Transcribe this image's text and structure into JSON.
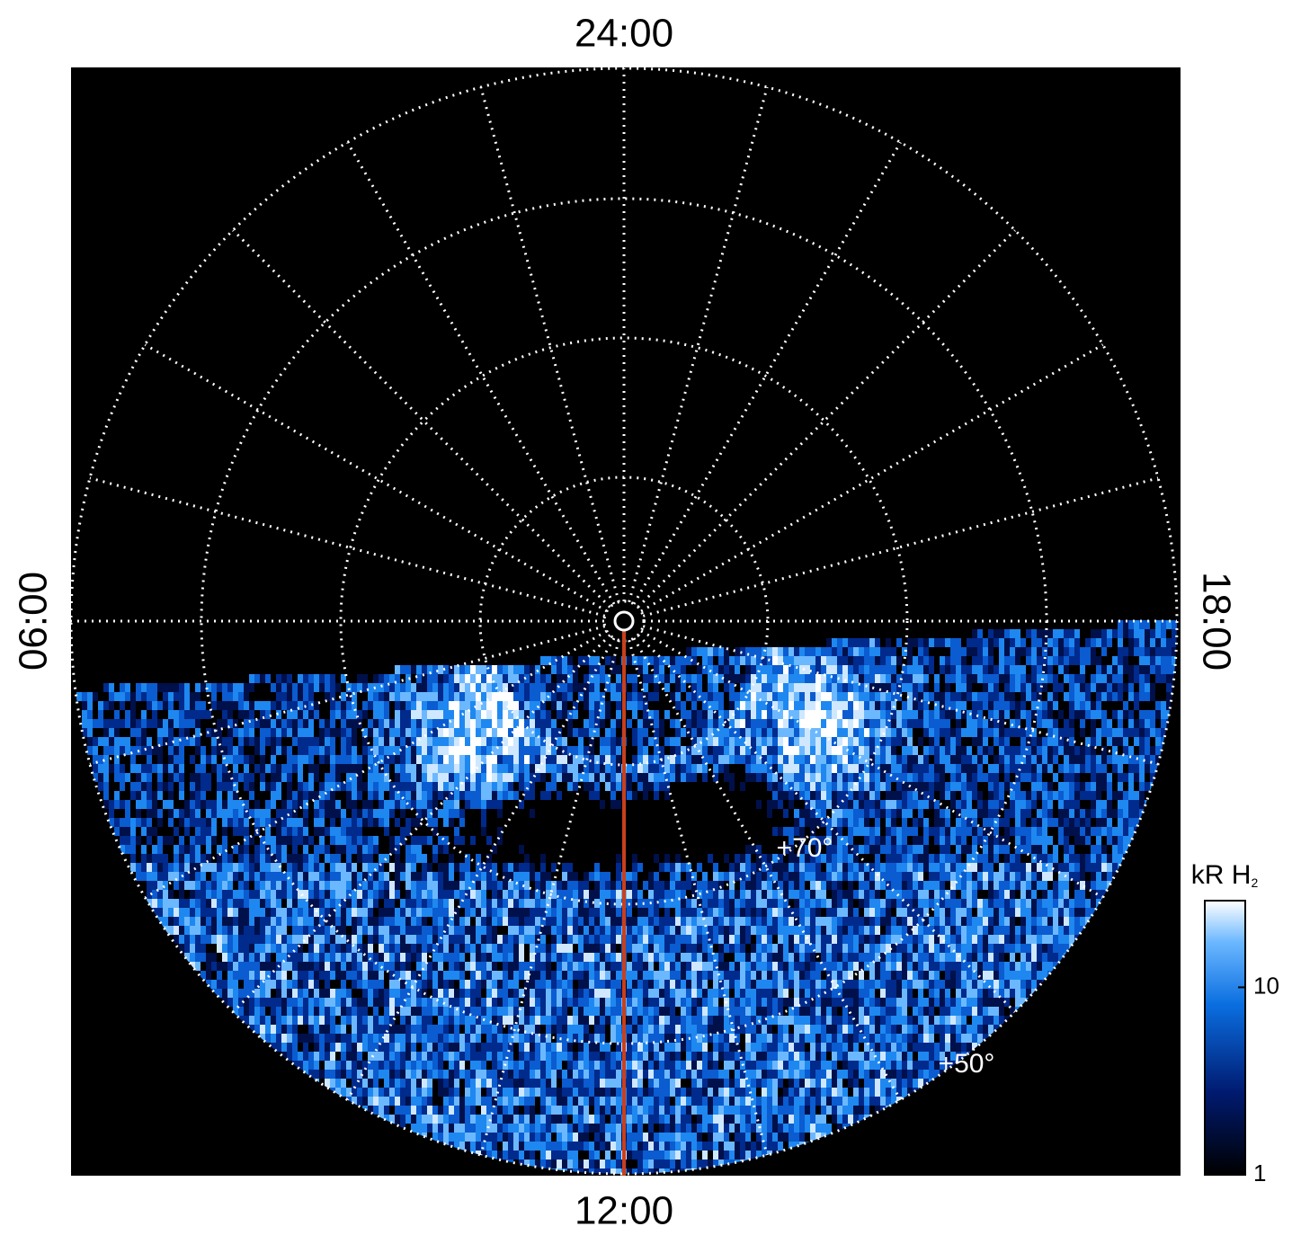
{
  "labels": {
    "top": "24:00",
    "bottom": "12:00",
    "left": "06:00",
    "right": "18:00"
  },
  "latitude_labels": [
    "+70°",
    "+50°"
  ],
  "colorbar": {
    "title": "kR H",
    "title_subscript": "2",
    "scale": "log",
    "lim": [
      1,
      29
    ],
    "ticks": [
      1,
      10
    ]
  }
}
